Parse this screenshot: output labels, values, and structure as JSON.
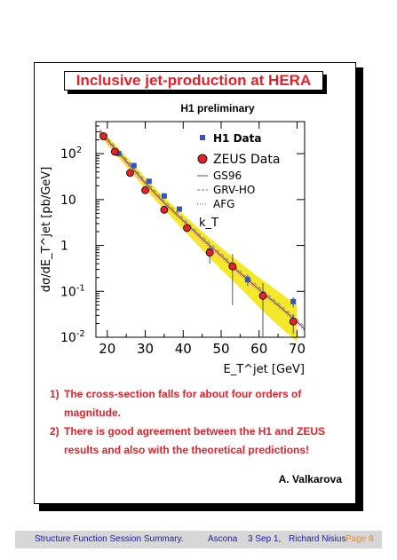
{
  "slide": {
    "title": "Inclusive jet-production at HERA",
    "notes": [
      {
        "num": "1)",
        "text": "The cross-section falls for about four orders of magnitude."
      },
      {
        "num": "2)",
        "text": "There is good agreement between the H1 and ZEUS results and also with the theoretical predictions!"
      }
    ],
    "author": "A. Valkarova"
  },
  "footer": {
    "left": "Structure Function Session Summary.",
    "place": "Ascona",
    "date": "3 Sep 1,",
    "speaker": "Richard Nisius",
    "page": "Page 8"
  },
  "colors": {
    "title": "#e8202a",
    "h1": "#3355bb",
    "zeus": "#e8202a",
    "band": "#f5e82a",
    "curve": "#7a3a9a"
  },
  "chart_data": {
    "type": "scatter",
    "title": "H1 preliminary",
    "xlabel": "E_T^jet [GeV]",
    "ylabel": "dσ/dE_T^jet [pb/GeV]",
    "xlim": [
      17,
      72
    ],
    "ylim": [
      0.01,
      500
    ],
    "yscale": "log",
    "xticks": [
      "20",
      "30",
      "40",
      "50",
      "60",
      "70"
    ],
    "yticks": [
      {
        "label": "10",
        "sup": "-2",
        "value": 0.01
      },
      {
        "label": "10",
        "sup": "-1",
        "value": 0.1
      },
      {
        "label": "1",
        "sup": "",
        "value": 1
      },
      {
        "label": "10",
        "sup": "",
        "value": 10
      },
      {
        "label": "10",
        "sup": "2",
        "value": 100
      }
    ],
    "legend_position": "top-right",
    "legend": [
      "H1 Data",
      "ZEUS Data",
      "GS96",
      "GRV-HO",
      "AFG",
      "k_T"
    ],
    "series": [
      {
        "name": "H1 Data",
        "marker": "square",
        "x": [
          19,
          23,
          27,
          31,
          35,
          39,
          47,
          57,
          69
        ],
        "y": [
          230,
          100,
          55,
          25,
          12,
          6.2,
          0.75,
          0.18,
          0.06
        ],
        "err": [
          0,
          0,
          0,
          0,
          0,
          0,
          0.12,
          0.05,
          0.015
        ]
      },
      {
        "name": "ZEUS Data",
        "marker": "circle",
        "x": [
          19,
          22,
          26,
          30,
          35,
          41,
          47,
          53,
          61,
          69
        ],
        "y": [
          240,
          110,
          38,
          16,
          6.0,
          2.4,
          0.7,
          0.35,
          0.08,
          0.022
        ],
        "err": [
          0,
          0,
          0,
          0,
          0,
          0,
          0.3,
          0.3,
          0.07,
          0.01
        ]
      },
      {
        "name": "GS96",
        "style": "line",
        "x": [
          18,
          22,
          26,
          30,
          35,
          40,
          45,
          50,
          55,
          60,
          65,
          70,
          72
        ],
        "y": [
          300,
          130,
          55,
          23,
          8.5,
          3.5,
          1.4,
          0.6,
          0.25,
          0.11,
          0.05,
          0.022,
          0.015
        ]
      }
    ],
    "band": {
      "x": [
        18,
        22,
        26,
        30,
        35,
        40,
        45,
        50,
        55,
        60,
        65,
        70
      ],
      "low": [
        250,
        100,
        42,
        17,
        6.0,
        2.2,
        0.8,
        0.3,
        0.12,
        0.045,
        0.018,
        0.008
      ],
      "high": [
        350,
        160,
        70,
        30,
        11,
        4.8,
        2.0,
        0.9,
        0.42,
        0.2,
        0.1,
        0.05
      ]
    }
  }
}
